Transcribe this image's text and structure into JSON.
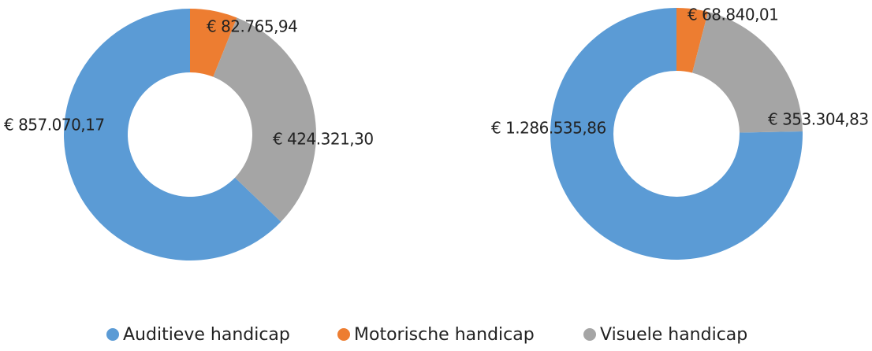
{
  "chart_data": [
    {
      "type": "pie",
      "values": [
        857070.17,
        82765.94,
        424321.3
      ],
      "value_labels": [
        "€ 857.070,17",
        "€ 82.765,94",
        "€ 424.321,30"
      ]
    },
    {
      "type": "pie",
      "values": [
        1286535.86,
        68840.01,
        353304.83
      ],
      "value_labels": [
        "€ 1.286.535,86",
        "€ 68.840,01",
        "€ 353.304,83"
      ]
    }
  ],
  "legend": {
    "items": [
      {
        "name": "Auditieve handicap",
        "color": "#5b9bd5"
      },
      {
        "name": "Motorische handicap",
        "color": "#ed7d31"
      },
      {
        "name": "Visuele handicap",
        "color": "#a5a5a5"
      }
    ]
  }
}
